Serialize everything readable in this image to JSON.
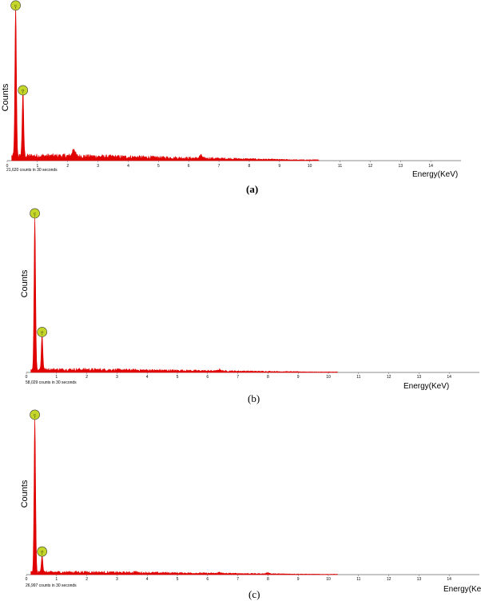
{
  "chart_data": [
    {
      "type": "area",
      "caption": "(a)",
      "ylabel": "Counts",
      "xlabel": "Energy(KeV)",
      "note": "21,620 counts in 30 seconds",
      "xlim": [
        0,
        15
      ],
      "ticks": [
        "0",
        "1",
        "2",
        "3",
        "4",
        "5",
        "6",
        "7",
        "8",
        "9",
        "10",
        "11",
        "12",
        "13",
        "14"
      ],
      "color": "#e00000",
      "peaks": [
        {
          "element": "C",
          "energy": 0.28,
          "height": 0.97
        },
        {
          "element": "O",
          "energy": 0.52,
          "height": 0.42
        }
      ],
      "bumps": [
        {
          "energy": 2.2,
          "height": 0.05
        },
        {
          "energy": 6.4,
          "height": 0.02
        }
      ],
      "background": 0.03
    },
    {
      "type": "area",
      "caption": "(b)",
      "ylabel": "Counts",
      "xlabel": "Energy(KeV)",
      "note": "58,029 counts in 30 seconds",
      "xlim": [
        0,
        15
      ],
      "ticks": [
        "0",
        "1",
        "2",
        "3",
        "4",
        "5",
        "6",
        "7",
        "8",
        "9",
        "10",
        "11",
        "12",
        "13",
        "14"
      ],
      "color": "#e00000",
      "peaks": [
        {
          "element": "C",
          "energy": 0.28,
          "height": 0.97
        },
        {
          "element": "O",
          "energy": 0.52,
          "height": 0.22
        }
      ],
      "bumps": [
        {
          "energy": 6.4,
          "height": 0.01
        }
      ],
      "background": 0.018
    },
    {
      "type": "area",
      "caption": "(c)",
      "ylabel": "Counts",
      "xlabel": "Energy(KeV)",
      "note": "26,997 counts in 30 seconds",
      "xlim": [
        0,
        15
      ],
      "ticks": [
        "0",
        "1",
        "2",
        "3",
        "4",
        "5",
        "6",
        "7",
        "8",
        "9",
        "10",
        "11",
        "12",
        "13",
        "14"
      ],
      "color": "#e00000",
      "peaks": [
        {
          "element": "C",
          "energy": 0.28,
          "height": 0.97
        },
        {
          "element": "O",
          "energy": 0.52,
          "height": 0.11
        }
      ],
      "bumps": [
        {
          "energy": 3.6,
          "height": 0.006
        },
        {
          "energy": 6.4,
          "height": 0.008
        },
        {
          "energy": 8.0,
          "height": 0.008
        }
      ],
      "background": 0.015
    }
  ]
}
